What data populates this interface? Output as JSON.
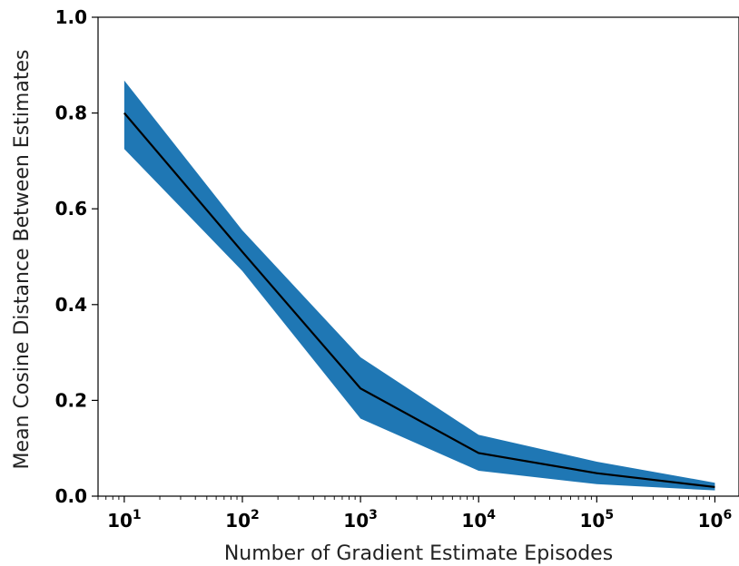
{
  "chart_data": {
    "type": "line",
    "xlabel": "Number of Gradient Estimate Episodes",
    "ylabel": "Mean Cosine Distance Between Estimates",
    "xscale": "log",
    "xlim": [
      6,
      1600000
    ],
    "ylim": [
      0.0,
      1.0
    ],
    "grid": false,
    "x": [
      10,
      100,
      1000,
      10000,
      100000,
      1000000
    ],
    "series": [
      {
        "values": [
          0.8,
          0.51,
          0.225,
          0.09,
          0.048,
          0.019
        ],
        "lower": [
          0.725,
          0.47,
          0.162,
          0.053,
          0.025,
          0.012
        ],
        "upper": [
          0.868,
          0.555,
          0.29,
          0.128,
          0.072,
          0.028
        ],
        "line_color": "#000000",
        "band_color": "#1f77b4"
      }
    ],
    "xticks": [
      {
        "base": "10",
        "exp": "1"
      },
      {
        "base": "10",
        "exp": "2"
      },
      {
        "base": "10",
        "exp": "3"
      },
      {
        "base": "10",
        "exp": "4"
      },
      {
        "base": "10",
        "exp": "5"
      },
      {
        "base": "10",
        "exp": "6"
      }
    ],
    "yticks": [
      "0.0",
      "0.2",
      "0.4",
      "0.6",
      "0.8",
      "1.0"
    ]
  }
}
